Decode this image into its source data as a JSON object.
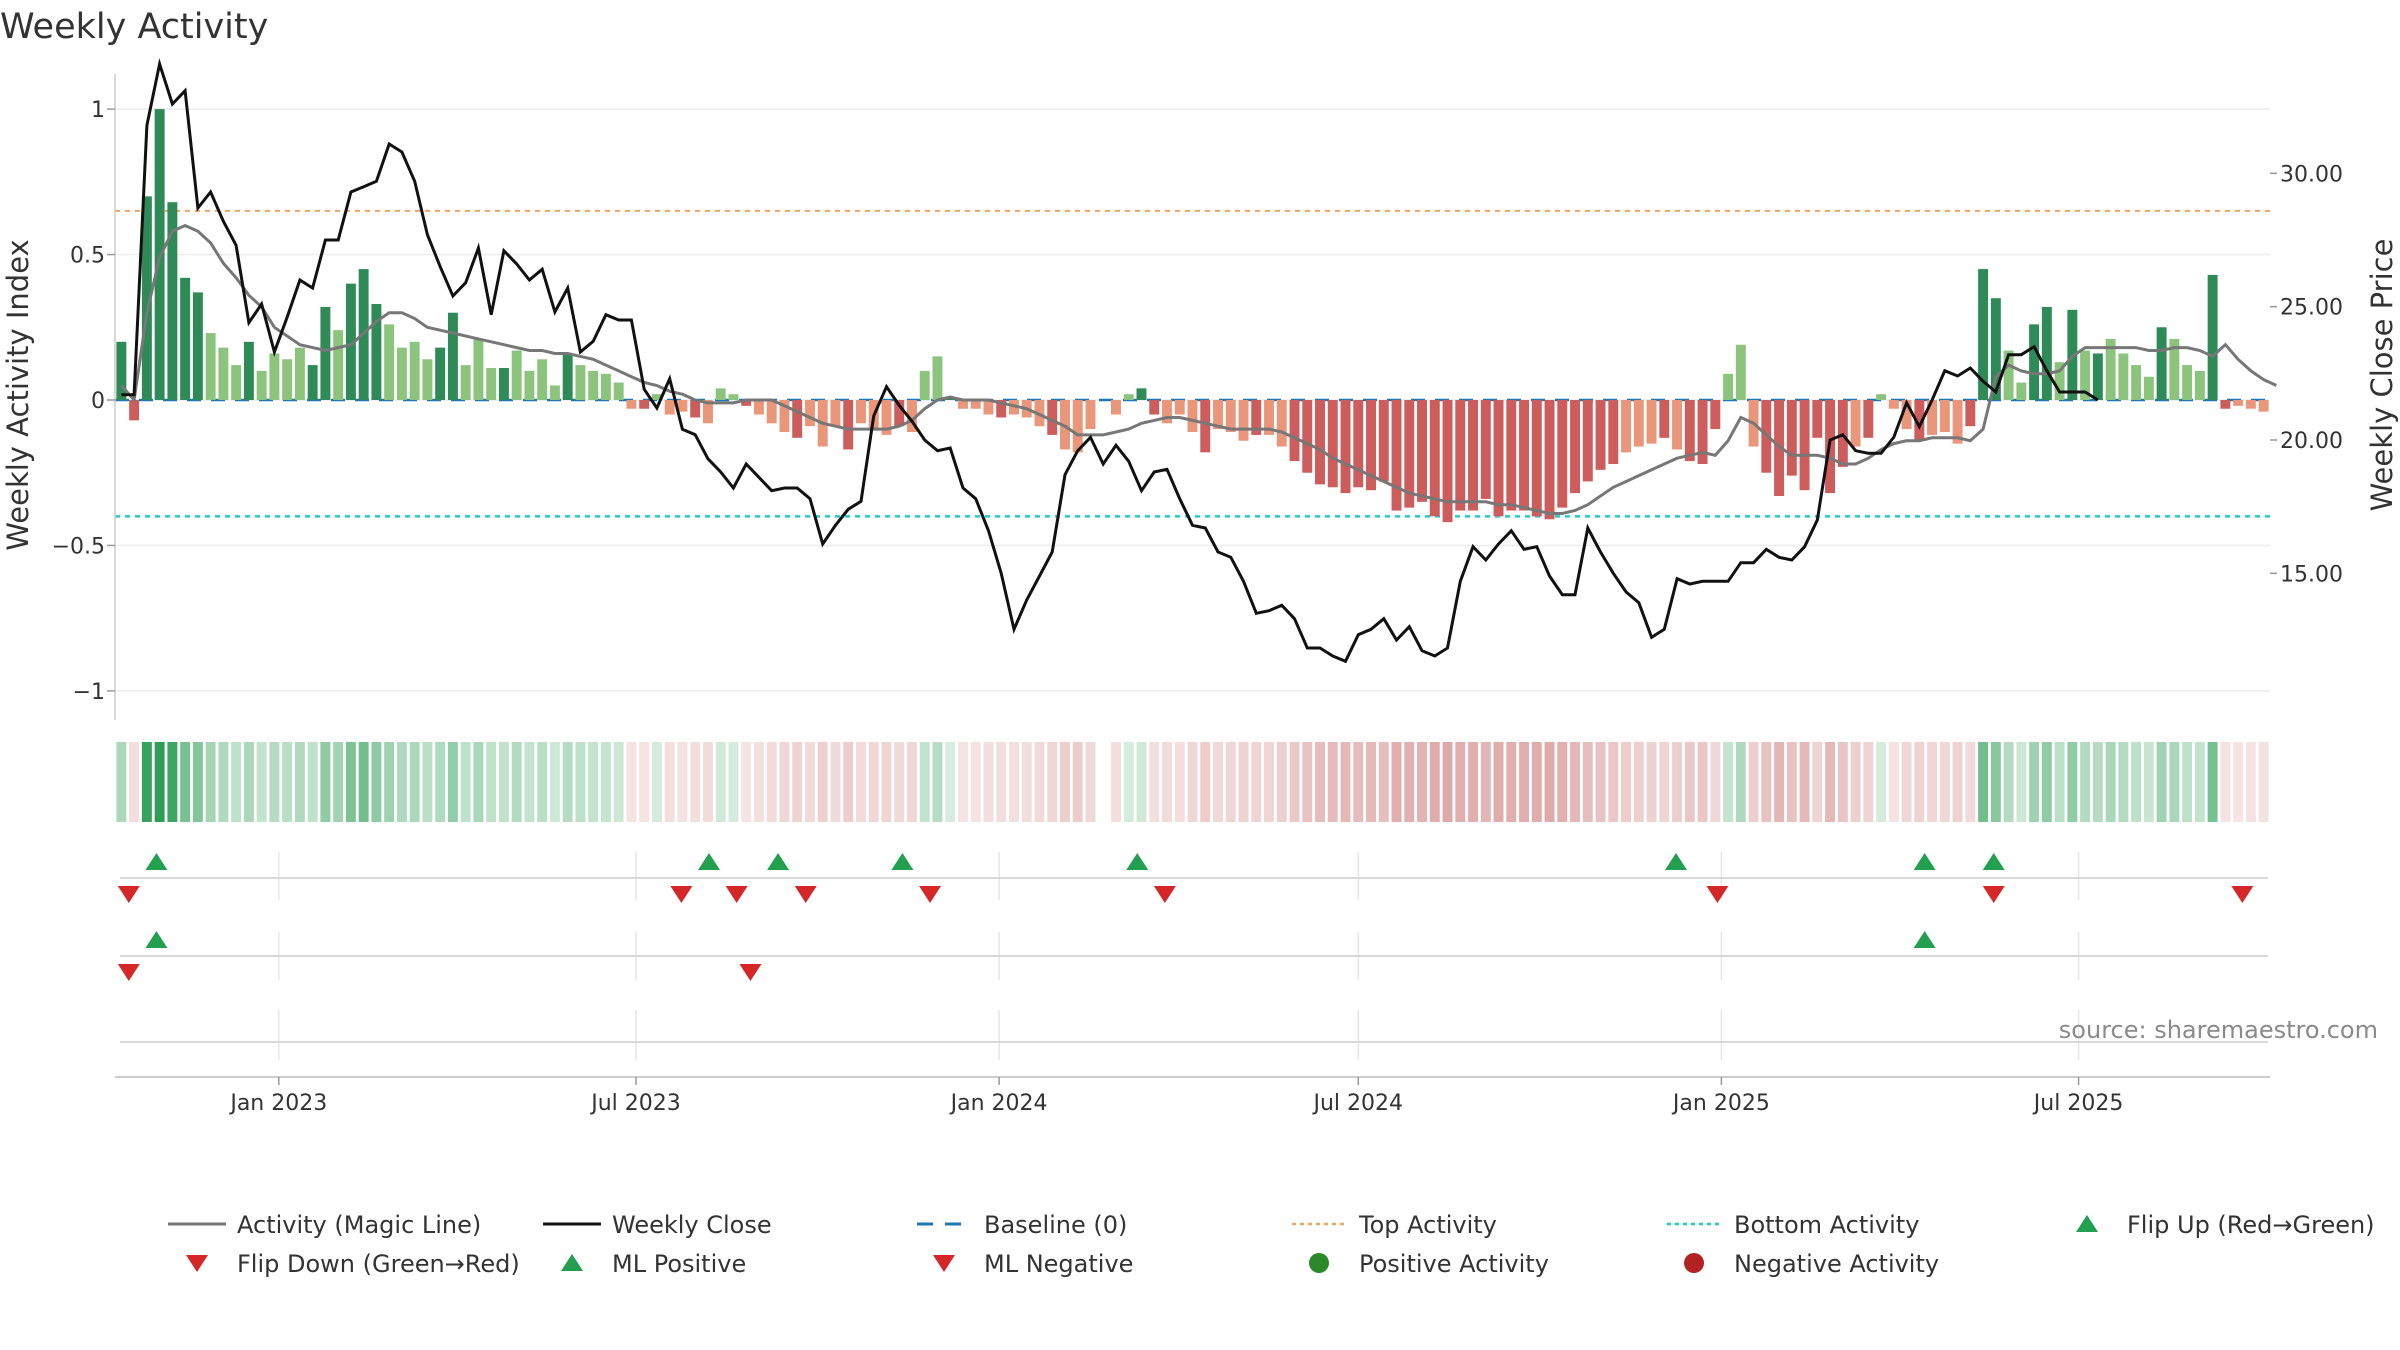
{
  "chart_data": {
    "type": "bar",
    "title": "Weekly Activity",
    "ylabel": "Weekly Activity Index",
    "y2label": "Weekly Close Price",
    "ylim": [
      -1.1,
      1.1
    ],
    "y2lim": [
      9.5,
      33.5
    ],
    "yticks": [
      1,
      0.5,
      0,
      -0.5,
      -1
    ],
    "ytick_labels": [
      "1",
      "0.5",
      "0",
      "−0.5",
      "−1"
    ],
    "y2ticks": [
      30,
      25,
      20,
      15
    ],
    "y2tick_labels": [
      "30.00",
      "25.00",
      "20.00",
      "15.00"
    ],
    "xlim": [
      "2022-10-10",
      "2025-10-06"
    ],
    "xticks": [
      "2023-01-01",
      "2023-07-01",
      "2024-01-01",
      "2024-07-01",
      "2025-01-01",
      "2025-07-01"
    ],
    "xtick_labels": [
      "Jan 2023",
      "Jul 2023",
      "Jan 2024",
      "Jul 2024",
      "Jan 2025",
      "Jul 2025"
    ],
    "top_activity": 0.65,
    "bottom_activity": -0.4,
    "baseline": 0,
    "source": "source: sharemaestro.com",
    "colors": {
      "pos_strong": "#2e8b57",
      "pos_light": "#8cc47e",
      "neg_strong": "#cd5c5c",
      "neg_light": "#e9967a",
      "magic_line": "#777777",
      "close": "#111111",
      "baseline": "#1f77b4",
      "top": "#f4a460",
      "bottom": "#22cccc",
      "flip_up": "#22a050",
      "flip_down": "#d62728",
      "positive_dot": "#2a8a2a",
      "negative_dot": "#b22222"
    },
    "activity": [
      0.2,
      -0.07,
      0.7,
      1.0,
      0.68,
      0.42,
      0.37,
      0.23,
      0.18,
      0.12,
      0.2,
      0.1,
      0.16,
      0.14,
      0.18,
      0.12,
      0.32,
      0.24,
      0.4,
      0.45,
      0.33,
      0.26,
      0.18,
      0.2,
      0.14,
      0.18,
      0.3,
      0.12,
      0.21,
      0.11,
      0.11,
      0.17,
      0.1,
      0.14,
      0.05,
      0.16,
      0.12,
      0.1,
      0.09,
      0.06,
      -0.03,
      -0.03,
      0.02,
      -0.05,
      -0.04,
      -0.06,
      -0.08,
      0.04,
      0.02,
      -0.02,
      -0.05,
      -0.08,
      -0.11,
      -0.13,
      -0.09,
      -0.16,
      -0.09,
      -0.17,
      -0.08,
      -0.1,
      -0.12,
      -0.09,
      -0.11,
      0.1,
      0.15,
      0.01,
      -0.03,
      -0.03,
      -0.05,
      -0.06,
      -0.05,
      -0.06,
      -0.09,
      -0.12,
      -0.17,
      -0.18,
      -0.1,
      null,
      -0.05,
      0.02,
      0.04,
      -0.05,
      -0.08,
      -0.05,
      -0.11,
      -0.18,
      -0.1,
      -0.11,
      -0.14,
      -0.12,
      -0.12,
      -0.16,
      -0.21,
      -0.25,
      -0.29,
      -0.3,
      -0.32,
      -0.3,
      -0.31,
      -0.28,
      -0.38,
      -0.37,
      -0.35,
      -0.4,
      -0.42,
      -0.38,
      -0.38,
      -0.34,
      -0.4,
      -0.38,
      -0.38,
      -0.4,
      -0.41,
      -0.37,
      -0.32,
      -0.28,
      -0.24,
      -0.22,
      -0.18,
      -0.16,
      -0.15,
      -0.13,
      -0.17,
      -0.21,
      -0.22,
      -0.1,
      0.09,
      0.19,
      -0.16,
      -0.25,
      -0.33,
      -0.26,
      -0.31,
      -0.13,
      -0.32,
      -0.23,
      -0.16,
      -0.13,
      0.02,
      -0.03,
      -0.1,
      -0.14,
      -0.12,
      -0.11,
      -0.15,
      -0.09,
      0.45,
      0.35,
      0.17,
      0.06,
      0.26,
      0.32,
      0.13,
      0.31,
      0.17,
      0.16,
      0.21,
      0.16,
      0.12,
      0.08,
      0.25,
      0.21,
      0.12,
      0.1,
      0.43,
      -0.03,
      -0.02,
      -0.03,
      -0.04
    ],
    "magic_line": [
      0.05,
      0,
      0.3,
      0.49,
      0.58,
      0.6,
      0.58,
      0.54,
      0.47,
      0.42,
      0.36,
      0.32,
      0.25,
      0.22,
      0.19,
      0.18,
      0.17,
      0.18,
      0.19,
      0.23,
      0.27,
      0.3,
      0.3,
      0.28,
      0.25,
      0.24,
      0.23,
      0.22,
      0.21,
      0.2,
      0.19,
      0.18,
      0.17,
      0.17,
      0.16,
      0.16,
      0.15,
      0.14,
      0.12,
      0.1,
      0.08,
      0.06,
      0.05,
      0.03,
      0.02,
      0,
      -0.01,
      -0.01,
      -0.01,
      0,
      0,
      0,
      -0.02,
      -0.04,
      -0.06,
      -0.08,
      -0.09,
      -0.1,
      -0.1,
      -0.1,
      -0.1,
      -0.09,
      -0.07,
      -0.03,
      0,
      0.01,
      0,
      0,
      0,
      -0.01,
      -0.02,
      -0.03,
      -0.05,
      -0.07,
      -0.09,
      -0.12,
      -0.12,
      -0.12,
      -0.11,
      -0.1,
      -0.08,
      -0.07,
      -0.06,
      -0.06,
      -0.07,
      -0.08,
      -0.09,
      -0.1,
      -0.1,
      -0.1,
      -0.1,
      -0.11,
      -0.13,
      -0.15,
      -0.17,
      -0.2,
      -0.22,
      -0.24,
      -0.26,
      -0.28,
      -0.3,
      -0.32,
      -0.33,
      -0.34,
      -0.35,
      -0.35,
      -0.35,
      -0.35,
      -0.36,
      -0.36,
      -0.37,
      -0.38,
      -0.39,
      -0.39,
      -0.38,
      -0.36,
      -0.33,
      -0.3,
      -0.28,
      -0.26,
      -0.24,
      -0.22,
      -0.2,
      -0.19,
      -0.18,
      -0.19,
      -0.14,
      -0.06,
      -0.08,
      -0.12,
      -0.16,
      -0.19,
      -0.19,
      -0.19,
      -0.2,
      -0.22,
      -0.22,
      -0.2,
      -0.17,
      -0.15,
      -0.14,
      -0.14,
      -0.13,
      -0.13,
      -0.13,
      -0.14,
      -0.1,
      0.08,
      0.12,
      0.1,
      0.09,
      0.09,
      0.1,
      0.15,
      0.18,
      0.18,
      0.18,
      0.18,
      0.18,
      0.17,
      0.17,
      0.18,
      0.18,
      0.17,
      0.15,
      0.19,
      0.14,
      0.1,
      0.07,
      0.05
    ],
    "close": [
      21.7,
      21.7,
      31.8,
      34.1,
      32.6,
      33.1,
      28.7,
      29.3,
      28.2,
      27.3,
      24.4,
      25.1,
      23.3,
      24.6,
      26.0,
      25.7,
      27.5,
      27.5,
      29.3,
      29.5,
      29.7,
      31.1,
      30.8,
      29.7,
      27.7,
      26.5,
      25.4,
      25.9,
      27.2,
      24.7,
      27.1,
      26.6,
      26.0,
      26.4,
      24.8,
      25.7,
      23.3,
      23.7,
      24.7,
      24.5,
      24.5,
      21.9,
      21.2,
      22.3,
      20.4,
      20.2,
      19.3,
      18.8,
      18.2,
      19.1,
      18.6,
      18.1,
      18.2,
      18.2,
      17.8,
      16.1,
      16.8,
      17.4,
      17.7,
      20.9,
      22.0,
      21.3,
      20.7,
      20.0,
      19.6,
      19.7,
      18.2,
      17.8,
      16.6,
      15.0,
      12.9,
      14.0,
      14.9,
      15.8,
      18.7,
      19.6,
      20.1,
      19.1,
      19.8,
      19.2,
      18.1,
      18.8,
      18.9,
      17.8,
      16.8,
      16.7,
      15.8,
      15.6,
      14.7,
      13.5,
      13.6,
      13.8,
      13.3,
      12.2,
      12.2,
      11.9,
      11.7,
      12.7,
      12.9,
      13.3,
      12.5,
      13.0,
      12.1,
      11.9,
      12.2,
      14.7,
      16.0,
      15.5,
      16.1,
      16.6,
      15.9,
      16.0,
      14.9,
      14.2,
      14.2,
      16.7,
      15.8,
      15.0,
      14.3,
      13.9,
      12.6,
      12.9,
      14.8,
      14.6,
      14.7,
      14.7,
      14.7,
      15.4,
      15.4,
      15.9,
      15.6,
      15.5,
      16.0,
      17.0,
      20.0,
      20.2,
      19.6,
      19.5,
      19.5,
      20.1,
      21.4,
      20.5,
      21.5,
      22.6,
      22.4,
      22.7,
      22.2,
      21.8,
      23.2,
      23.2,
      23.5,
      22.6,
      21.8,
      21.8,
      21.8,
      21.5
    ],
    "flip_up_markers": [
      "2022-10-31",
      "2023-08-07",
      "2023-09-11",
      "2023-11-13",
      "2024-03-11",
      "2024-12-09",
      "2025-04-14",
      "2025-05-19"
    ],
    "flip_down_markers": [
      "2022-10-17",
      "2023-07-24",
      "2023-08-21",
      "2023-09-25",
      "2023-11-27",
      "2024-03-25",
      "2024-12-30",
      "2025-05-19",
      "2025-09-22"
    ],
    "ml_positive_markers": [
      "2022-10-31",
      "2025-04-14"
    ],
    "ml_negative_markers": [
      "2022-10-17",
      "2023-08-28"
    ]
  },
  "legend": [
    {
      "label": "Activity (Magic Line)",
      "type": "line",
      "color": "#777777"
    },
    {
      "label": "Weekly Close",
      "type": "line",
      "color": "#111111"
    },
    {
      "label": "Baseline (0)",
      "type": "dash",
      "color": "#1f77b4"
    },
    {
      "label": "Top Activity",
      "type": "dot",
      "color": "#f4a460"
    },
    {
      "label": "Bottom Activity",
      "type": "dot",
      "color": "#22cccc"
    },
    {
      "label": "Flip Up (Red→Green)",
      "type": "up",
      "color": "#22a050"
    },
    {
      "label": "Flip Down (Green→Red)",
      "type": "down",
      "color": "#d62728"
    },
    {
      "label": "ML Positive",
      "type": "up",
      "color": "#22a050"
    },
    {
      "label": "ML Negative",
      "type": "down",
      "color": "#d62728"
    },
    {
      "label": "Positive Activity",
      "type": "circle",
      "color": "#2a8a2a"
    },
    {
      "label": "Negative Activity",
      "type": "circle",
      "color": "#b22222"
    }
  ]
}
